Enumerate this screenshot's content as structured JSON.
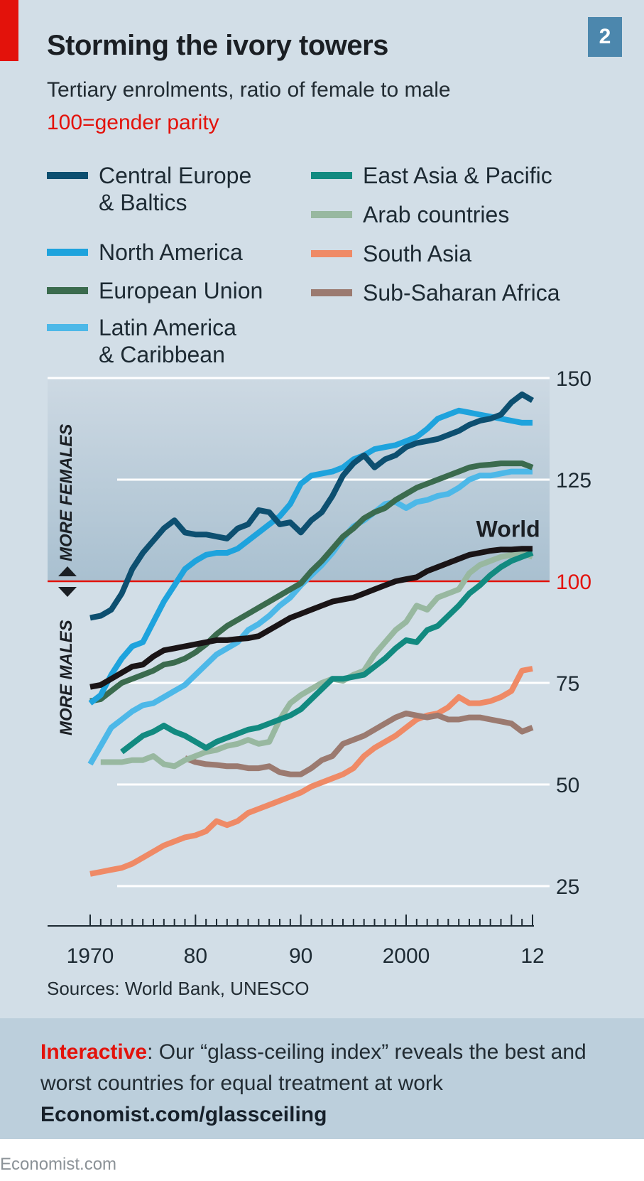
{
  "header": {
    "title": "Storming the ivory towers",
    "badge": "2",
    "subtitle": "Tertiary enrolments, ratio of female to male",
    "parity_note": "100=gender parity"
  },
  "legend": [
    {
      "label": "Central Europe\n& Baltics",
      "color": "#0d4f70"
    },
    {
      "label": "North America",
      "color": "#1ea3dd"
    },
    {
      "label": "European Union",
      "color": "#3b6b4e"
    },
    {
      "label": "Latin America\n& Caribbean",
      "color": "#4db8e8"
    },
    {
      "label": "East Asia & Pacific",
      "color": "#128a80"
    },
    {
      "label": "Arab countries",
      "color": "#98b8a0"
    },
    {
      "label": "South Asia",
      "color": "#ef8a66"
    },
    {
      "label": "Sub-Saharan Africa",
      "color": "#9b7a70"
    }
  ],
  "side_labels": {
    "up": "MORE FEMALES",
    "down": "MORE MALES"
  },
  "chart_data": {
    "type": "line",
    "title": "Storming the ivory towers",
    "subtitle": "Tertiary enrolments, ratio of female to male; 100=gender parity",
    "xlabel": "",
    "ylabel": "",
    "xlim": [
      1970,
      2012
    ],
    "ylim": [
      25,
      150
    ],
    "x_ticks": [
      1970,
      1980,
      1990,
      2000,
      2012
    ],
    "x_tick_labels": [
      "1970",
      "80",
      "90",
      "2000",
      "12"
    ],
    "y_ticks": [
      25,
      50,
      75,
      100,
      125,
      150
    ],
    "y_tick_labels": [
      "25",
      "50",
      "75",
      "100",
      "125",
      "150"
    ],
    "reference_line": {
      "value": 100,
      "color": "#e3120b"
    },
    "shaded_band": [
      100,
      150
    ],
    "grid": true,
    "legend_position": "top",
    "annotations": [
      {
        "text": "World",
        "x": 2008,
        "y": 112
      }
    ],
    "series": [
      {
        "name": "Central Europe & Baltics",
        "color": "#0d4f70",
        "start": 1970,
        "values": [
          91,
          91.5,
          93,
          97,
          103,
          107,
          110,
          113,
          115,
          112,
          111.5,
          111.5,
          111,
          110.5,
          113,
          114,
          117.5,
          117,
          114,
          114.5,
          112,
          115,
          117,
          121,
          126,
          129,
          131,
          128,
          130,
          131,
          133,
          134,
          134.5,
          135,
          136,
          137,
          138.5,
          139.5,
          140,
          141,
          144,
          146,
          144.5
        ]
      },
      {
        "name": "North America",
        "color": "#1ea3dd",
        "start": 1970,
        "values": [
          70,
          72,
          77,
          81,
          84,
          85,
          90,
          95,
          99,
          103,
          105,
          106.5,
          107,
          107,
          108,
          110,
          112,
          114,
          116,
          119,
          124,
          126,
          126.5,
          127,
          128,
          130,
          131,
          132.5,
          133,
          133.5,
          134.5,
          135.5,
          137.5,
          140,
          141,
          142,
          141.5,
          141,
          140.5,
          140,
          139.5,
          139,
          139
        ]
      },
      {
        "name": "European Union",
        "color": "#3b6b4e",
        "start": 1970,
        "values": [
          70.5,
          71,
          73,
          75,
          76,
          77,
          78,
          79.5,
          80,
          81,
          82.5,
          84.5,
          87,
          89,
          90.5,
          92,
          93.5,
          95,
          96.5,
          98,
          99.5,
          102.5,
          105,
          108,
          111,
          113,
          115.5,
          117,
          118,
          120,
          121.5,
          123,
          124,
          125,
          126,
          127,
          128,
          128.5,
          128.7,
          129,
          129,
          129,
          128
        ]
      },
      {
        "name": "Latin America & Caribbean",
        "color": "#4db8e8",
        "start": 1970,
        "values": [
          55,
          59.5,
          64,
          66,
          68,
          69.5,
          70,
          71.5,
          73,
          74.5,
          77,
          79.5,
          82,
          83.5,
          85,
          88,
          89.5,
          91.5,
          94,
          96,
          99,
          101.5,
          104,
          107,
          110.5,
          113.5,
          115,
          117,
          119,
          119.5,
          118,
          119.5,
          120,
          121,
          121.5,
          123,
          125,
          126,
          126,
          126.5,
          127,
          127,
          127
        ]
      },
      {
        "name": "East Asia & Pacific",
        "color": "#128a80",
        "start": 1973,
        "values": [
          58,
          60,
          62,
          63,
          64.5,
          63,
          62,
          60.5,
          59,
          60.5,
          61.5,
          62.5,
          63.5,
          64,
          65,
          66,
          67,
          68.5,
          71,
          73.5,
          76,
          76,
          76.5,
          77,
          79,
          81,
          83.5,
          85.5,
          85,
          88,
          89,
          91.5,
          94,
          97,
          99,
          101.5,
          103.5,
          105,
          106,
          107
        ]
      },
      {
        "name": "Arab countries",
        "color": "#98b8a0",
        "start": 1971,
        "values": [
          55.5,
          55.5,
          55.5,
          56,
          56,
          57,
          55,
          54.5,
          56,
          57,
          58,
          58.5,
          59.5,
          60,
          61,
          60,
          60.5,
          66,
          70,
          72,
          73.5,
          75,
          76,
          75.5,
          77,
          78,
          82,
          85,
          88,
          90,
          94,
          93,
          96,
          97,
          98,
          102,
          104,
          105,
          106,
          106.5,
          107,
          106
        ]
      },
      {
        "name": "Sub-Saharan Africa",
        "color": "#9b7a70",
        "start": 1979,
        "values": [
          56.5,
          55.5,
          55,
          54.8,
          54.5,
          54.5,
          54,
          54,
          54.5,
          53,
          52.5,
          52.5,
          54,
          56,
          57,
          60,
          61,
          62,
          63.5,
          65,
          66.5,
          67.5,
          67,
          66.5,
          67,
          66,
          66,
          66.5,
          66.5,
          66,
          65.5,
          65,
          63,
          64
        ]
      },
      {
        "name": "South Asia",
        "color": "#ef8a66",
        "start": 1970,
        "values": [
          28,
          28.5,
          29,
          29.5,
          30.5,
          32,
          33.5,
          35,
          36,
          37,
          37.5,
          38.5,
          41,
          40,
          41,
          43,
          44,
          45,
          46,
          47,
          48,
          49.5,
          50.5,
          51.5,
          52.5,
          54,
          57,
          59,
          60.5,
          62,
          64,
          66,
          67,
          67.5,
          69,
          71.5,
          70,
          70,
          70.5,
          71.5,
          73,
          78,
          78.5
        ]
      },
      {
        "name": "World",
        "color": "#1a1416",
        "start": 1970,
        "values": [
          74,
          74.5,
          76,
          77.5,
          79,
          79.5,
          81.5,
          83,
          83.5,
          84,
          84.5,
          85,
          85.5,
          85.5,
          85.8,
          86,
          86.5,
          88,
          89.5,
          91,
          92,
          93,
          94,
          95,
          95.5,
          96,
          97,
          98,
          99,
          100,
          100.5,
          101,
          102.5,
          103.5,
          104.5,
          105.5,
          106.5,
          107,
          107.5,
          107.8,
          107.8,
          108,
          108
        ]
      }
    ]
  },
  "footer": {
    "sources": "Sources: World Bank, UNESCO",
    "promo_strong": "Interactive",
    "promo_text": ": Our “glass-ceiling index” reveals the best and worst countries for equal treatment at work",
    "promo_link": "Economist.com/glassceiling",
    "brand": "Economist.com"
  }
}
